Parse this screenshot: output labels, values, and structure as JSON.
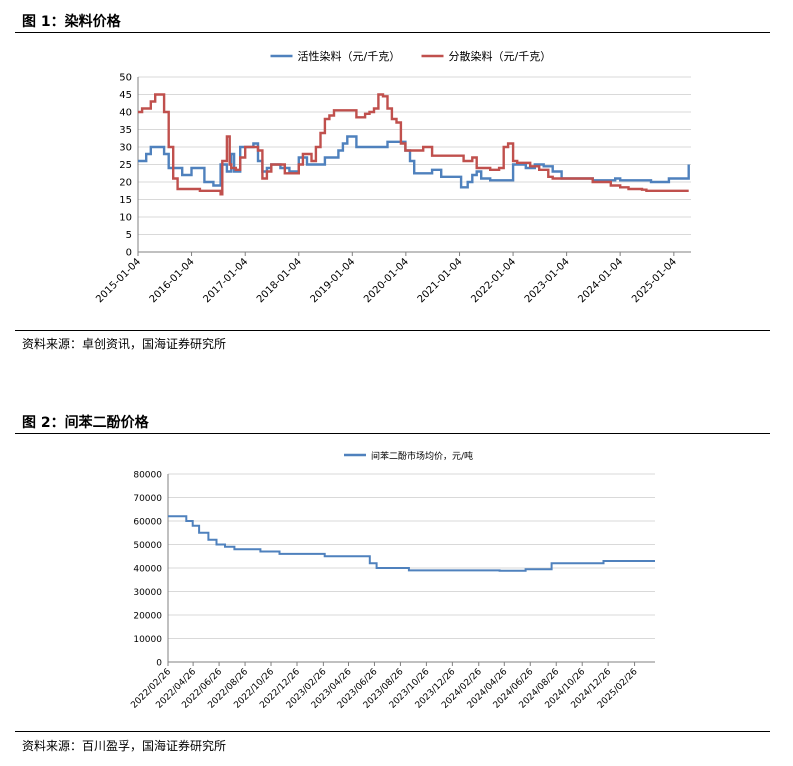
{
  "figure1": {
    "title": "图 1：染料价格",
    "source": "资料来源：卓创资讯，国海证券研究所"
  },
  "figure2": {
    "title": "图 2：间苯二酚价格",
    "source": "资料来源：百川盈孚，国海证券研究所"
  },
  "chart_data": [
    {
      "type": "line",
      "ylim": [
        0,
        50
      ],
      "yticks": [
        0,
        5,
        10,
        15,
        20,
        25,
        30,
        35,
        40,
        45,
        50
      ],
      "xlim": [
        "2015-01-04",
        "2025-05-01"
      ],
      "xticks": [
        "2015-01-04",
        "2016-01-04",
        "2017-01-04",
        "2018-01-04",
        "2019-01-04",
        "2020-01-04",
        "2021-01-04",
        "2022-01-04",
        "2023-01-04",
        "2024-01-04",
        "2025-01-04"
      ],
      "legend_position": "top-center",
      "grid": true,
      "series": [
        {
          "name": "活性染料（元/千克）",
          "color": "#4F81BD",
          "points": [
            [
              "2015-01-04",
              26
            ],
            [
              "2015-03-01",
              28
            ],
            [
              "2015-04-01",
              30
            ],
            [
              "2015-06-01",
              30
            ],
            [
              "2015-07-01",
              28
            ],
            [
              "2015-08-01",
              24
            ],
            [
              "2015-10-01",
              24
            ],
            [
              "2015-11-01",
              22
            ],
            [
              "2016-01-04",
              24
            ],
            [
              "2016-03-01",
              24
            ],
            [
              "2016-04-01",
              20
            ],
            [
              "2016-06-01",
              19
            ],
            [
              "2016-07-10",
              19
            ],
            [
              "2016-07-20",
              25
            ],
            [
              "2016-08-15",
              25
            ],
            [
              "2016-09-01",
              23
            ],
            [
              "2016-10-01",
              28
            ],
            [
              "2016-10-20",
              23
            ],
            [
              "2016-12-01",
              30
            ],
            [
              "2017-02-01",
              30
            ],
            [
              "2017-03-01",
              31
            ],
            [
              "2017-04-01",
              26
            ],
            [
              "2017-05-01",
              23
            ],
            [
              "2017-06-01",
              24
            ],
            [
              "2017-07-01",
              25
            ],
            [
              "2017-09-01",
              24
            ],
            [
              "2017-11-01",
              23
            ],
            [
              "2018-01-04",
              27
            ],
            [
              "2018-03-01",
              25
            ],
            [
              "2018-06-01",
              25
            ],
            [
              "2018-07-01",
              27
            ],
            [
              "2018-09-01",
              27
            ],
            [
              "2018-10-01",
              29
            ],
            [
              "2018-11-01",
              31
            ],
            [
              "2018-12-01",
              33
            ],
            [
              "2019-02-01",
              30
            ],
            [
              "2019-06-01",
              30
            ],
            [
              "2019-09-01",
              31.5
            ],
            [
              "2019-11-15",
              31.5
            ],
            [
              "2020-01-01",
              29
            ],
            [
              "2020-02-01",
              26
            ],
            [
              "2020-03-01",
              22.5
            ],
            [
              "2020-06-01",
              22.5
            ],
            [
              "2020-07-01",
              23.5
            ],
            [
              "2020-09-01",
              21.5
            ],
            [
              "2021-01-04",
              21.5
            ],
            [
              "2021-01-15",
              18.5
            ],
            [
              "2021-03-01",
              20
            ],
            [
              "2021-04-01",
              22
            ],
            [
              "2021-05-01",
              23
            ],
            [
              "2021-06-01",
              21
            ],
            [
              "2021-08-01",
              20.5
            ],
            [
              "2021-12-01",
              20.5
            ],
            [
              "2022-01-04",
              25
            ],
            [
              "2022-02-01",
              25
            ],
            [
              "2022-04-01",
              24
            ],
            [
              "2022-06-01",
              25
            ],
            [
              "2022-08-01",
              24.5
            ],
            [
              "2022-10-01",
              23
            ],
            [
              "2022-12-01",
              21
            ],
            [
              "2023-06-01",
              21
            ],
            [
              "2023-07-01",
              20.5
            ],
            [
              "2023-12-01",
              21
            ],
            [
              "2024-01-04",
              20.5
            ],
            [
              "2024-08-01",
              20
            ],
            [
              "2024-11-01",
              20
            ],
            [
              "2024-12-01",
              21
            ],
            [
              "2025-04-01",
              21
            ],
            [
              "2025-04-15",
              25
            ]
          ]
        },
        {
          "name": "分散染料（元/千克）",
          "color": "#C0504D",
          "points": [
            [
              "2015-01-04",
              40
            ],
            [
              "2015-02-01",
              41
            ],
            [
              "2015-04-01",
              43
            ],
            [
              "2015-05-01",
              45
            ],
            [
              "2015-06-01",
              45
            ],
            [
              "2015-07-01",
              40
            ],
            [
              "2015-08-01",
              30
            ],
            [
              "2015-09-01",
              21
            ],
            [
              "2015-10-01",
              18
            ],
            [
              "2016-02-01",
              18
            ],
            [
              "2016-03-01",
              17.5
            ],
            [
              "2016-07-01",
              17.5
            ],
            [
              "2016-07-20",
              16.5
            ],
            [
              "2016-08-01",
              26
            ],
            [
              "2016-09-01",
              33
            ],
            [
              "2016-09-20",
              25
            ],
            [
              "2016-10-01",
              24
            ],
            [
              "2016-11-01",
              23.5
            ],
            [
              "2016-12-01",
              27
            ],
            [
              "2017-01-04",
              30
            ],
            [
              "2017-04-01",
              29
            ],
            [
              "2017-05-01",
              21
            ],
            [
              "2017-06-01",
              23
            ],
            [
              "2017-07-01",
              25
            ],
            [
              "2017-09-01",
              25
            ],
            [
              "2017-10-01",
              22.5
            ],
            [
              "2017-12-01",
              22.5
            ],
            [
              "2018-01-04",
              25
            ],
            [
              "2018-02-01",
              28
            ],
            [
              "2018-04-01",
              26
            ],
            [
              "2018-05-01",
              30
            ],
            [
              "2018-06-01",
              34
            ],
            [
              "2018-07-01",
              38
            ],
            [
              "2018-08-01",
              39
            ],
            [
              "2018-09-01",
              40.5
            ],
            [
              "2019-01-04",
              40.5
            ],
            [
              "2019-02-01",
              38.5
            ],
            [
              "2019-04-01",
              39.5
            ],
            [
              "2019-05-01",
              40
            ],
            [
              "2019-06-01",
              41
            ],
            [
              "2019-07-01",
              45
            ],
            [
              "2019-08-01",
              44.5
            ],
            [
              "2019-09-01",
              41
            ],
            [
              "2019-10-01",
              38
            ],
            [
              "2019-11-01",
              37
            ],
            [
              "2019-12-01",
              31
            ],
            [
              "2020-01-01",
              29
            ],
            [
              "2020-04-01",
              29
            ],
            [
              "2020-05-01",
              30
            ],
            [
              "2020-07-01",
              27.5
            ],
            [
              "2021-01-01",
              27.5
            ],
            [
              "2021-02-01",
              26
            ],
            [
              "2021-04-01",
              27
            ],
            [
              "2021-05-01",
              24
            ],
            [
              "2021-07-01",
              24
            ],
            [
              "2021-08-01",
              23.5
            ],
            [
              "2021-10-01",
              24
            ],
            [
              "2021-11-01",
              30
            ],
            [
              "2021-12-01",
              31
            ],
            [
              "2022-01-04",
              26
            ],
            [
              "2022-02-01",
              25.5
            ],
            [
              "2022-03-01",
              25.5
            ],
            [
              "2022-05-01",
              24.5
            ],
            [
              "2022-07-01",
              23.5
            ],
            [
              "2022-09-01",
              21.5
            ],
            [
              "2022-10-01",
              21
            ],
            [
              "2023-07-01",
              20
            ],
            [
              "2023-10-01",
              20
            ],
            [
              "2023-11-01",
              19
            ],
            [
              "2024-01-04",
              18.5
            ],
            [
              "2024-03-01",
              18
            ],
            [
              "2024-06-01",
              17.8
            ],
            [
              "2024-07-01",
              17.5
            ],
            [
              "2025-04-15",
              17.5
            ]
          ]
        }
      ]
    },
    {
      "type": "line",
      "ylim": [
        0,
        80000
      ],
      "yticks": [
        0,
        10000,
        20000,
        30000,
        40000,
        50000,
        60000,
        70000,
        80000
      ],
      "xlim": [
        "2022-02-26",
        "2025-04-15"
      ],
      "xticks": [
        "2022/02/26",
        "2022/04/26",
        "2022/06/26",
        "2022/08/26",
        "2022/10/26",
        "2022/12/26",
        "2023/02/26",
        "2023/04/26",
        "2023/06/26",
        "2023/08/26",
        "2023/10/26",
        "2023/12/26",
        "2024/02/26",
        "2024/04/26",
        "2024/06/26",
        "2024/08/26",
        "2024/10/26",
        "2024/12/26",
        "2025/02/26"
      ],
      "legend_position": "top-center",
      "grid": true,
      "series": [
        {
          "name": "间苯二酚市场均价，元/吨",
          "color": "#4F81BD",
          "points": [
            [
              "2022-02-26",
              62000
            ],
            [
              "2022-04-01",
              62000
            ],
            [
              "2022-04-10",
              60000
            ],
            [
              "2022-04-25",
              58000
            ],
            [
              "2022-05-10",
              55000
            ],
            [
              "2022-06-01",
              52000
            ],
            [
              "2022-06-20",
              50000
            ],
            [
              "2022-07-10",
              49000
            ],
            [
              "2022-08-01",
              48000
            ],
            [
              "2022-09-15",
              48000
            ],
            [
              "2022-10-01",
              47000
            ],
            [
              "2022-11-01",
              47000
            ],
            [
              "2022-11-15",
              46000
            ],
            [
              "2023-02-15",
              46000
            ],
            [
              "2023-03-01",
              45000
            ],
            [
              "2023-06-01",
              45000
            ],
            [
              "2023-06-15",
              42000
            ],
            [
              "2023-07-01",
              40000
            ],
            [
              "2023-09-01",
              40000
            ],
            [
              "2023-09-15",
              39000
            ],
            [
              "2024-04-01",
              39000
            ],
            [
              "2024-04-15",
              38800
            ],
            [
              "2024-06-01",
              38800
            ],
            [
              "2024-06-15",
              39500
            ],
            [
              "2024-08-01",
              39500
            ],
            [
              "2024-08-15",
              42000
            ],
            [
              "2024-12-01",
              42000
            ],
            [
              "2024-12-15",
              43000
            ],
            [
              "2025-04-15",
              43000
            ]
          ]
        }
      ]
    }
  ]
}
